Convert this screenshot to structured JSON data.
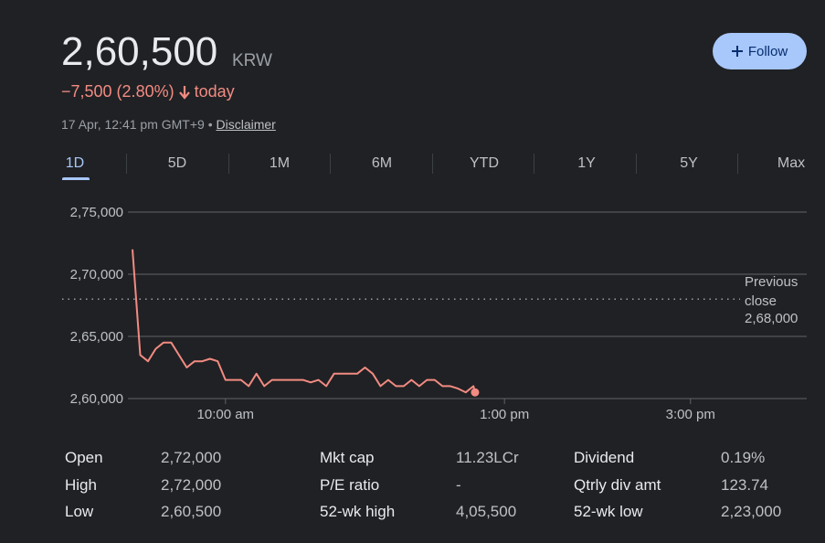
{
  "header": {
    "price": "2,60,500",
    "currency": "KRW",
    "change": "−7,500 (2.80%)",
    "period": "today",
    "timestamp": "17 Apr, 12:41 pm GMT+9 •",
    "disclaimer": "Disclaimer",
    "follow": "Follow"
  },
  "tabs": {
    "items": [
      "1D",
      "5D",
      "1M",
      "6M",
      "YTD",
      "1Y",
      "5Y",
      "Max"
    ],
    "selected": 0
  },
  "chart_data": {
    "type": "line",
    "x": [
      540,
      545,
      550,
      555,
      560,
      565,
      570,
      575,
      580,
      585,
      590,
      595,
      600,
      605,
      610,
      615,
      620,
      625,
      630,
      635,
      640,
      645,
      650,
      655,
      660,
      665,
      670,
      675,
      680,
      685,
      690,
      695,
      700,
      705,
      710,
      715,
      720,
      725,
      730,
      735,
      740,
      745,
      750,
      755,
      760,
      761
    ],
    "values": [
      272000,
      263500,
      263000,
      264000,
      264500,
      264500,
      263500,
      262500,
      263000,
      263000,
      263200,
      263000,
      261500,
      261500,
      261500,
      261000,
      262000,
      261000,
      261500,
      261500,
      261500,
      261500,
      261500,
      261300,
      261500,
      261000,
      262000,
      262000,
      262000,
      262000,
      262500,
      262000,
      261000,
      261500,
      261000,
      261000,
      261500,
      261000,
      261500,
      261500,
      261000,
      261000,
      260800,
      260500,
      261000,
      260500
    ],
    "color": "#f28b82",
    "xlim": [
      540,
      975
    ],
    "xticks": [
      {
        "value": 600,
        "label": "10:00 am"
      },
      {
        "value": 780,
        "label": "1:00 pm"
      },
      {
        "value": 900,
        "label": "3:00 pm"
      }
    ],
    "ylim": [
      260000,
      275000
    ],
    "yticks": [
      {
        "value": 260000,
        "label": "2,60,000"
      },
      {
        "value": 265000,
        "label": "2,65,000"
      },
      {
        "value": 270000,
        "label": "2,70,000"
      },
      {
        "value": 275000,
        "label": "2,75,000"
      }
    ],
    "grid": true,
    "reference": {
      "label": "Previous close",
      "value": 268000,
      "value_label": "2,68,000"
    }
  },
  "stats": [
    {
      "label": "Open",
      "value": "2,72,000"
    },
    {
      "label": "High",
      "value": "2,72,000"
    },
    {
      "label": "Low",
      "value": "2,60,500"
    },
    {
      "label": "Mkt cap",
      "value": "11.23LCr"
    },
    {
      "label": "P/E ratio",
      "value": "-"
    },
    {
      "label": "52-wk high",
      "value": "4,05,500"
    },
    {
      "label": "Dividend",
      "value": "0.19%"
    },
    {
      "label": "Qtrly div amt",
      "value": "123.74"
    },
    {
      "label": "52-wk low",
      "value": "2,23,000"
    }
  ]
}
